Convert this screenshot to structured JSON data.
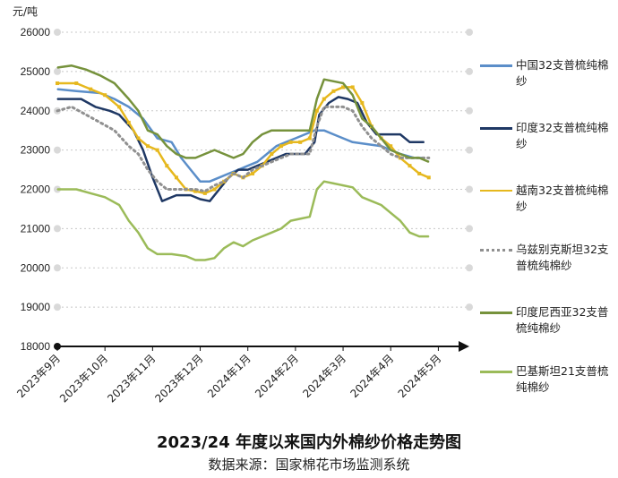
{
  "unit": "元/吨",
  "title": "2023/24 年度以来国内外棉纱价格走势图",
  "subtitle": "数据来源：国家棉花市场监测系统",
  "chart_data": {
    "type": "line",
    "title": "2023/24 年度以来国内外棉纱价格走势图",
    "ylabel": "元/吨",
    "xlabel": "",
    "ylim": [
      18000,
      26000
    ],
    "yticks": [
      18000,
      19000,
      20000,
      21000,
      22000,
      23000,
      24000,
      25000,
      26000
    ],
    "xlim": [
      0,
      8.5
    ],
    "xtick_labels": [
      "2023年9月",
      "2023年10月",
      "2023年11月",
      "2023年12月",
      "2024年1月",
      "2024年2月",
      "2024年3月",
      "2024年4月",
      "2024年5月"
    ],
    "grid": "horizontal dotted",
    "legend_position": "right",
    "series": [
      {
        "name": "中国32支普梳纯棉纱",
        "color": "#5b8ec9",
        "style": "solid",
        "points": [
          [
            0,
            24550
          ],
          [
            0.4,
            24500
          ],
          [
            0.9,
            24450
          ],
          [
            1.2,
            24300
          ],
          [
            1.5,
            24100
          ],
          [
            1.8,
            23800
          ],
          [
            2.1,
            23300
          ],
          [
            2.4,
            23200
          ],
          [
            2.6,
            22800
          ],
          [
            2.8,
            22500
          ],
          [
            3.0,
            22200
          ],
          [
            3.2,
            22200
          ],
          [
            3.4,
            22300
          ],
          [
            3.6,
            22400
          ],
          [
            3.8,
            22500
          ],
          [
            4.0,
            22600
          ],
          [
            4.2,
            22700
          ],
          [
            4.4,
            22900
          ],
          [
            4.6,
            23100
          ],
          [
            4.8,
            23200
          ],
          [
            5.0,
            23300
          ],
          [
            5.2,
            23400
          ],
          [
            5.4,
            23500
          ],
          [
            5.6,
            23500
          ],
          [
            5.8,
            23400
          ],
          [
            6.0,
            23300
          ],
          [
            6.2,
            23200
          ],
          [
            6.5,
            23150
          ],
          [
            6.8,
            23100
          ],
          [
            7.0,
            23000
          ],
          [
            7.2,
            22900
          ],
          [
            7.5,
            22800
          ],
          [
            7.7,
            22800
          ]
        ]
      },
      {
        "name": "印度32支普梳纯棉纱",
        "color": "#1f3864",
        "style": "solid",
        "points": [
          [
            0,
            24300
          ],
          [
            0.5,
            24300
          ],
          [
            0.8,
            24100
          ],
          [
            1.1,
            24000
          ],
          [
            1.3,
            23900
          ],
          [
            1.6,
            23500
          ],
          [
            1.8,
            23000
          ],
          [
            2.0,
            22300
          ],
          [
            2.2,
            21700
          ],
          [
            2.5,
            21850
          ],
          [
            2.8,
            21850
          ],
          [
            3.0,
            21750
          ],
          [
            3.2,
            21700
          ],
          [
            3.4,
            22000
          ],
          [
            3.6,
            22300
          ],
          [
            3.8,
            22500
          ],
          [
            4.0,
            22500
          ],
          [
            4.2,
            22600
          ],
          [
            4.4,
            22700
          ],
          [
            4.6,
            22800
          ],
          [
            4.8,
            22900
          ],
          [
            5.0,
            22900
          ],
          [
            5.2,
            22900
          ],
          [
            5.4,
            23200
          ],
          [
            5.5,
            23900
          ],
          [
            5.7,
            24200
          ],
          [
            5.9,
            24350
          ],
          [
            6.1,
            24300
          ],
          [
            6.3,
            24200
          ],
          [
            6.5,
            23700
          ],
          [
            6.7,
            23400
          ],
          [
            7.0,
            23400
          ],
          [
            7.2,
            23400
          ],
          [
            7.4,
            23200
          ],
          [
            7.7,
            23200
          ]
        ]
      },
      {
        "name": "越南32支普梳纯棉纱",
        "color": "#e6b81e",
        "style": "solid-markers",
        "points": [
          [
            0,
            24700
          ],
          [
            0.4,
            24700
          ],
          [
            0.7,
            24550
          ],
          [
            1.0,
            24400
          ],
          [
            1.3,
            24100
          ],
          [
            1.5,
            23700
          ],
          [
            1.7,
            23300
          ],
          [
            1.9,
            23100
          ],
          [
            2.1,
            23000
          ],
          [
            2.3,
            22600
          ],
          [
            2.5,
            22300
          ],
          [
            2.7,
            22000
          ],
          [
            2.9,
            21950
          ],
          [
            3.1,
            21900
          ],
          [
            3.3,
            22000
          ],
          [
            3.5,
            22200
          ],
          [
            3.7,
            22400
          ],
          [
            3.9,
            22300
          ],
          [
            4.1,
            22400
          ],
          [
            4.3,
            22600
          ],
          [
            4.5,
            22900
          ],
          [
            4.7,
            23100
          ],
          [
            4.9,
            23200
          ],
          [
            5.1,
            23200
          ],
          [
            5.3,
            23300
          ],
          [
            5.45,
            24000
          ],
          [
            5.6,
            24300
          ],
          [
            5.8,
            24500
          ],
          [
            6.0,
            24600
          ],
          [
            6.2,
            24600
          ],
          [
            6.4,
            24200
          ],
          [
            6.6,
            23600
          ],
          [
            6.8,
            23300
          ],
          [
            7.0,
            23100
          ],
          [
            7.2,
            22800
          ],
          [
            7.4,
            22600
          ],
          [
            7.6,
            22400
          ],
          [
            7.8,
            22300
          ]
        ]
      },
      {
        "name": "乌兹别克斯坦32支普梳纯棉纱",
        "color": "#909090",
        "style": "dotted",
        "points": [
          [
            0,
            24000
          ],
          [
            0.3,
            24100
          ],
          [
            0.6,
            23900
          ],
          [
            0.9,
            23700
          ],
          [
            1.2,
            23500
          ],
          [
            1.5,
            23100
          ],
          [
            1.7,
            22900
          ],
          [
            1.9,
            22500
          ],
          [
            2.1,
            22200
          ],
          [
            2.3,
            22000
          ],
          [
            2.6,
            22000
          ],
          [
            2.9,
            22000
          ],
          [
            3.1,
            21950
          ],
          [
            3.3,
            22100
          ],
          [
            3.5,
            22200
          ],
          [
            3.7,
            22400
          ],
          [
            3.9,
            22300
          ],
          [
            4.1,
            22500
          ],
          [
            4.3,
            22600
          ],
          [
            4.5,
            22700
          ],
          [
            4.7,
            22800
          ],
          [
            4.9,
            22900
          ],
          [
            5.1,
            22900
          ],
          [
            5.3,
            22900
          ],
          [
            5.45,
            23600
          ],
          [
            5.6,
            24100
          ],
          [
            5.8,
            24100
          ],
          [
            6.0,
            24100
          ],
          [
            6.2,
            24000
          ],
          [
            6.4,
            23600
          ],
          [
            6.6,
            23300
          ],
          [
            6.8,
            23100
          ],
          [
            7.0,
            22900
          ],
          [
            7.2,
            22800
          ],
          [
            7.4,
            22800
          ],
          [
            7.6,
            22800
          ],
          [
            7.8,
            22800
          ]
        ]
      },
      {
        "name": "印度尼西亚32支普梳纯棉纱",
        "color": "#76923c",
        "style": "solid",
        "points": [
          [
            0,
            25100
          ],
          [
            0.3,
            25150
          ],
          [
            0.6,
            25050
          ],
          [
            0.9,
            24900
          ],
          [
            1.2,
            24700
          ],
          [
            1.5,
            24300
          ],
          [
            1.7,
            24000
          ],
          [
            1.9,
            23500
          ],
          [
            2.1,
            23400
          ],
          [
            2.3,
            23100
          ],
          [
            2.5,
            22900
          ],
          [
            2.7,
            22800
          ],
          [
            2.9,
            22800
          ],
          [
            3.1,
            22900
          ],
          [
            3.3,
            23000
          ],
          [
            3.5,
            22900
          ],
          [
            3.7,
            22800
          ],
          [
            3.9,
            22900
          ],
          [
            4.1,
            23200
          ],
          [
            4.3,
            23400
          ],
          [
            4.5,
            23500
          ],
          [
            4.7,
            23500
          ],
          [
            4.9,
            23500
          ],
          [
            5.1,
            23500
          ],
          [
            5.3,
            23500
          ],
          [
            5.45,
            24300
          ],
          [
            5.6,
            24800
          ],
          [
            5.8,
            24750
          ],
          [
            6.0,
            24700
          ],
          [
            6.2,
            24400
          ],
          [
            6.4,
            23800
          ],
          [
            6.6,
            23600
          ],
          [
            6.8,
            23300
          ],
          [
            7.0,
            23000
          ],
          [
            7.2,
            22900
          ],
          [
            7.4,
            22800
          ],
          [
            7.6,
            22800
          ],
          [
            7.8,
            22700
          ]
        ]
      },
      {
        "name": "巴基斯坦21支普梳纯棉纱",
        "color": "#9bbb59",
        "style": "solid",
        "points": [
          [
            0,
            22000
          ],
          [
            0.4,
            22000
          ],
          [
            0.7,
            21900
          ],
          [
            1.0,
            21800
          ],
          [
            1.3,
            21600
          ],
          [
            1.5,
            21200
          ],
          [
            1.7,
            20900
          ],
          [
            1.9,
            20500
          ],
          [
            2.1,
            20350
          ],
          [
            2.4,
            20350
          ],
          [
            2.7,
            20300
          ],
          [
            2.9,
            20200
          ],
          [
            3.1,
            20200
          ],
          [
            3.3,
            20250
          ],
          [
            3.5,
            20500
          ],
          [
            3.7,
            20650
          ],
          [
            3.9,
            20550
          ],
          [
            4.1,
            20700
          ],
          [
            4.3,
            20800
          ],
          [
            4.5,
            20900
          ],
          [
            4.7,
            21000
          ],
          [
            4.9,
            21200
          ],
          [
            5.1,
            21250
          ],
          [
            5.3,
            21300
          ],
          [
            5.45,
            22000
          ],
          [
            5.6,
            22200
          ],
          [
            5.8,
            22150
          ],
          [
            6.0,
            22100
          ],
          [
            6.2,
            22050
          ],
          [
            6.4,
            21800
          ],
          [
            6.6,
            21700
          ],
          [
            6.8,
            21600
          ],
          [
            7.0,
            21400
          ],
          [
            7.2,
            21200
          ],
          [
            7.4,
            20900
          ],
          [
            7.6,
            20800
          ],
          [
            7.8,
            20800
          ]
        ]
      }
    ]
  }
}
